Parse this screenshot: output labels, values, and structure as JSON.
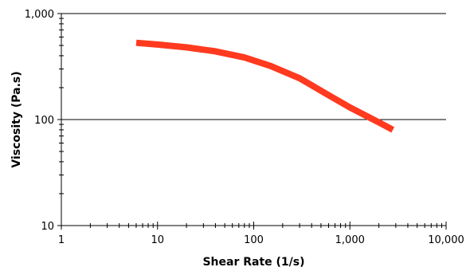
{
  "chart_data": {
    "type": "line",
    "xlabel": "Shear Rate (1/s)",
    "ylabel": "Viscosity (Pa.s)",
    "xscale": "log",
    "yscale": "log",
    "xlim": [
      1,
      10000
    ],
    "ylim": [
      10,
      1000
    ],
    "grid": "horizontal major gridlines",
    "legend": "none",
    "x_tick_labels": [
      "1",
      "10",
      "100",
      "1,000",
      "10,000"
    ],
    "y_tick_labels": [
      "10",
      "100",
      "1,000"
    ],
    "series": [
      {
        "color": "#ff3a1f",
        "x": [
          6,
          10,
          20,
          40,
          80,
          150,
          300,
          600,
          1000,
          2000,
          2800
        ],
        "y": [
          530,
          510,
          480,
          440,
          385,
          320,
          245,
          170,
          130,
          94,
          80
        ]
      }
    ]
  }
}
